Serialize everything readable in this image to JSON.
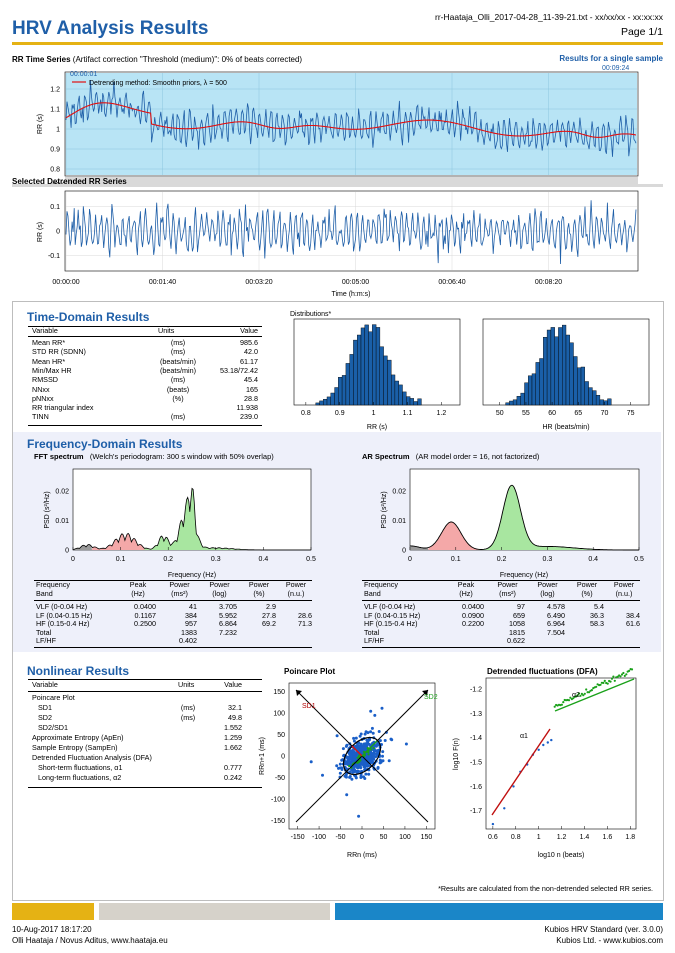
{
  "header": {
    "title": "HRV Analysis Results",
    "filename": "rr-Haataja_Olli_2017-04-28_11-39-21.txt - xx/xx/xx - xx:xx:xx",
    "page": "Page 1/1"
  },
  "rr_series": {
    "title": "RR Time Series",
    "subtitle": "(Artifact correction \"Threshold (medium)\": 0% of beats corrected)",
    "single_sample": "Results for a single sample",
    "start_marker": "00:00:01",
    "end_marker": "00:09:24",
    "legend": "Detrending method: Smoothn priors, λ = 500",
    "ylabel": "RR (s)",
    "yticks": [
      "1.2",
      "1.1",
      "1",
      "0.9",
      "0.8"
    ],
    "xticks": [
      "00:00:00",
      "00:01:40",
      "00:03:20",
      "00:05:00",
      "00:06:40",
      "00:08:20"
    ]
  },
  "detrended": {
    "title": "Selected Detrended RR Series",
    "ylabel": "RR (s)",
    "yticks": [
      "0.1",
      "0",
      "-0.1"
    ],
    "xticks": [
      "00:00:00",
      "00:01:40",
      "00:03:20",
      "00:05:00",
      "00:06:40",
      "00:08:20"
    ],
    "xlabel": "Time (h:m:s)"
  },
  "time_domain": {
    "title": "Time-Domain Results",
    "headers": [
      "Variable",
      "Units",
      "Value"
    ],
    "rows": [
      [
        "Mean RR*",
        "(ms)",
        "985.6"
      ],
      [
        "STD RR (SDNN)",
        "(ms)",
        "42.0"
      ],
      [
        "Mean HR*",
        "(beats/min)",
        "61.17"
      ],
      [
        "Min/Max HR",
        "(beats/min)",
        "53.18/72.42"
      ],
      [
        "RMSSD",
        "(ms)",
        "45.4"
      ],
      [
        "NNxx",
        "(beats)",
        "165"
      ],
      [
        "pNNxx",
        "(%)",
        "28.8"
      ],
      [
        "RR triangular index",
        "",
        "11.938"
      ],
      [
        "TINN",
        "(ms)",
        "239.0"
      ]
    ],
    "distributions_label": "Distributions*",
    "hist_rr": {
      "xlabel": "RR (s)",
      "xticks": [
        "0.8",
        "0.9",
        "1",
        "1.1",
        "1.2"
      ]
    },
    "hist_hr": {
      "xlabel": "HR (beats/min)",
      "xticks": [
        "50",
        "55",
        "60",
        "65",
        "70",
        "75"
      ]
    }
  },
  "freq_domain": {
    "title": "Frequency-Domain Results",
    "fft": {
      "title": "FFT spectrum",
      "subtitle": "(Welch's periodogram: 300 s window with 50% overlap)",
      "ylabel": "PSD (s²/Hz)",
      "yticks": [
        "0.02",
        "0.01",
        "0"
      ],
      "xticks": [
        "0",
        "0.1",
        "0.2",
        "0.3",
        "0.4",
        "0.5"
      ],
      "xlabel": "Frequency (Hz)"
    },
    "ar": {
      "title": "AR Spectrum",
      "subtitle": "(AR model order = 16, not factorized)",
      "ylabel": "PSD (s²/Hz)",
      "yticks": [
        "0.02",
        "0.01",
        "0"
      ],
      "xticks": [
        "0",
        "0.1",
        "0.2",
        "0.3",
        "0.4",
        "0.5"
      ],
      "xlabel": "Frequency (Hz)"
    },
    "headers": [
      "Frequency Band",
      "Peak (Hz)",
      "Power (ms²)",
      "Power (log)",
      "Power (%)",
      "Power (n.u.)"
    ],
    "fft_rows": [
      [
        "VLF (0-0.04 Hz)",
        "0.0400",
        "41",
        "3.705",
        "2.9",
        ""
      ],
      [
        "LF (0.04-0.15 Hz)",
        "0.1167",
        "384",
        "5.952",
        "27.8",
        "28.6"
      ],
      [
        "HF (0.15-0.4 Hz)",
        "0.2500",
        "957",
        "6.864",
        "69.2",
        "71.3"
      ],
      [
        "Total",
        "",
        "1383",
        "7.232",
        "",
        ""
      ],
      [
        "LF/HF",
        "",
        "0.402",
        "",
        "",
        ""
      ]
    ],
    "ar_rows": [
      [
        "VLF (0-0.04 Hz)",
        "0.0400",
        "97",
        "4.578",
        "5.4",
        ""
      ],
      [
        "LF (0.04-0.15 Hz)",
        "0.0900",
        "659",
        "6.490",
        "36.3",
        "38.4"
      ],
      [
        "HF (0.15-0.4 Hz)",
        "0.2200",
        "1058",
        "6.964",
        "58.3",
        "61.6"
      ],
      [
        "Total",
        "",
        "1815",
        "7.504",
        "",
        ""
      ],
      [
        "LF/HF",
        "",
        "0.622",
        "",
        "",
        ""
      ]
    ]
  },
  "nonlinear": {
    "title": "Nonlinear Results",
    "headers": [
      "Variable",
      "Units",
      "Value"
    ],
    "rows": [
      [
        "Poincare Plot",
        "",
        "",
        0
      ],
      [
        "SD1",
        "(ms)",
        "32.1",
        1
      ],
      [
        "SD2",
        "(ms)",
        "49.8",
        1
      ],
      [
        "SD2/SD1",
        "",
        "1.552",
        1
      ],
      [
        "Approximate Entropy (ApEn)",
        "",
        "1.259",
        0
      ],
      [
        "Sample Entropy (SampEn)",
        "",
        "1.662",
        0
      ],
      [
        "Detrended Fluctuation Analysis (DFA)",
        "",
        "",
        0
      ],
      [
        "Short-term fluctuations, α1",
        "",
        "0.777",
        1
      ],
      [
        "Long-term fluctuations, α2",
        "",
        "0.242",
        1
      ]
    ],
    "poincare": {
      "title": "Poincare Plot",
      "xlabel": "RRn (ms)",
      "ylabel": "RRn+1 (ms)",
      "ticks": [
        "-150",
        "-100",
        "-50",
        "0",
        "50",
        "100",
        "150"
      ],
      "sd1": "SD1",
      "sd2": "SD2"
    },
    "dfa": {
      "title": "Detrended fluctuations (DFA)",
      "xlabel": "log10 n (beats)",
      "ylabel": "log10 F(n)",
      "xticks": [
        "0.6",
        "0.8",
        "1",
        "1.2",
        "1.4",
        "1.6",
        "1.8"
      ],
      "yticks": [
        "-1.2",
        "-1.3",
        "-1.4",
        "-1.5",
        "-1.6",
        "-1.7"
      ],
      "a1": "α1",
      "a2": "α2"
    },
    "footnote": "*Results are calculated from the non-detrended selected RR series."
  },
  "footer": {
    "datetime": "10-Aug-2017 18:17:20",
    "author": "Olli Haataja / Novus Aditus, www.haataja.eu",
    "software": "Kubios HRV Standard (ver. 3.0.0)",
    "company": "Kubios Ltd. - www.kubios.com",
    "bar_colors": [
      "#e5b214",
      "#d6d2ca",
      "#1a86c8"
    ]
  },
  "colors": {
    "accent": "#1f5fa8",
    "series": "#1f5fa8",
    "trend": "#e01010",
    "hf": "#a8e6a0",
    "lf": "#f4a8a8",
    "vlf": "#9a9a9a"
  }
}
